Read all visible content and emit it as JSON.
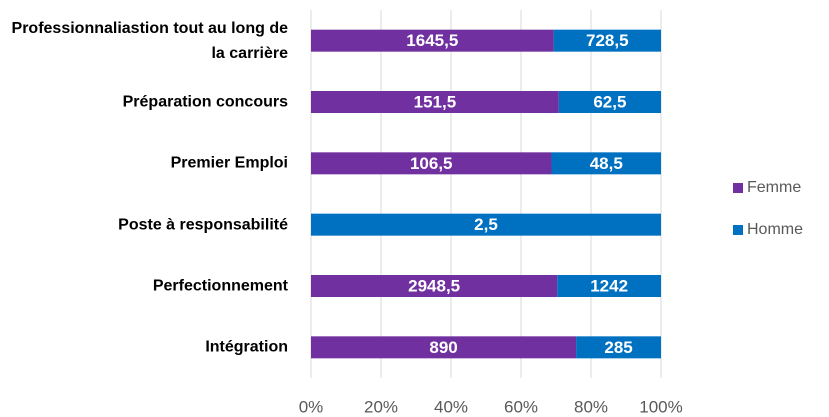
{
  "chart_data": {
    "type": "bar",
    "orientation": "horizontal",
    "percent_stacked": true,
    "categories": [
      "Professionnaliastion tout au long de la carrière",
      "Préparation concours",
      "Premier Emploi",
      "Poste à responsabilité",
      "Perfectionnement",
      "Intégration"
    ],
    "series": [
      {
        "name": "Femme",
        "color": "#7030a0",
        "values": [
          1645.5,
          151.5,
          106.5,
          0,
          2948.5,
          890
        ],
        "value_labels": [
          "1645,5",
          "151,5",
          "106,5",
          null,
          "2948,5",
          "890"
        ]
      },
      {
        "name": "Homme",
        "color": "#0070c0",
        "values": [
          728.5,
          62.5,
          48.5,
          2.5,
          1242,
          285
        ],
        "value_labels": [
          "728,5",
          "62,5",
          "48,5",
          "2,5",
          "1242",
          "285"
        ]
      }
    ],
    "xlim": [
      0,
      100
    ],
    "xticks": [
      {
        "value": 0,
        "label": "0%"
      },
      {
        "value": 20,
        "label": "20%"
      },
      {
        "value": 40,
        "label": "40%"
      },
      {
        "value": 60,
        "label": "60%"
      },
      {
        "value": 80,
        "label": "80%"
      },
      {
        "value": 100,
        "label": "100%"
      }
    ],
    "grid": true,
    "legend": "right"
  }
}
